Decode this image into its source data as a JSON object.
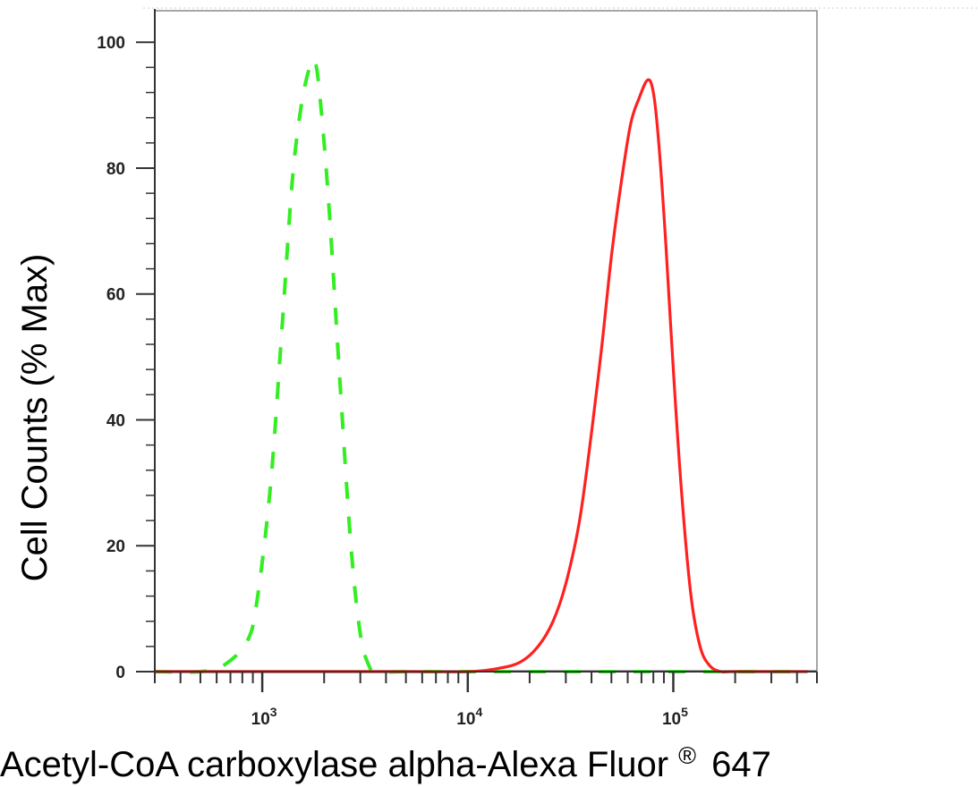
{
  "chart_data": {
    "type": "line",
    "title": "",
    "xlabel": "Acetyl-CoA carboxylase alpha-Alexa Fluor",
    "xlabel_superscript": "®",
    "xlabel_suffix": "647",
    "ylabel": "Cell Counts (% Max)",
    "x_scale": "log",
    "xlim": [
      300,
      500000
    ],
    "ylim": [
      0,
      105
    ],
    "x_ticks": [
      {
        "value": 1000,
        "base": "10",
        "exp": "3"
      },
      {
        "value": 10000,
        "base": "10",
        "exp": "4"
      },
      {
        "value": 100000,
        "base": "10",
        "exp": "5"
      }
    ],
    "y_ticks": [
      {
        "value": 0,
        "label": "0"
      },
      {
        "value": 20,
        "label": "20"
      },
      {
        "value": 40,
        "label": "40"
      },
      {
        "value": 60,
        "label": "60"
      },
      {
        "value": 80,
        "label": "80"
      },
      {
        "value": 100,
        "label": "100"
      }
    ],
    "grid": false,
    "legend": "none",
    "series": [
      {
        "color": "#33ee22",
        "style": "dashed",
        "x": [
          300,
          500,
          650,
          850,
          950,
          1100,
          1250,
          1400,
          1550,
          1700,
          1800,
          1900,
          2100,
          2400,
          2700,
          3000,
          3300,
          3600,
          5000,
          10000,
          50000,
          100000,
          200000,
          450000
        ],
        "y": [
          0,
          0,
          1,
          5,
          12,
          30,
          55,
          78,
          90,
          96,
          97,
          92,
          75,
          45,
          20,
          6,
          1,
          0,
          0,
          0,
          0,
          0,
          0,
          0
        ]
      },
      {
        "color": "#ff2020",
        "style": "solid",
        "x": [
          300,
          1000,
          5000,
          10000,
          14000,
          18000,
          22000,
          26000,
          30000,
          35000,
          40000,
          45000,
          50000,
          56000,
          62000,
          68000,
          75000,
          80000,
          85000,
          92000,
          100000,
          110000,
          122000,
          135000,
          150000,
          170000,
          200000,
          450000
        ],
        "y": [
          0,
          0,
          0,
          0,
          0.5,
          1.5,
          4,
          8,
          14,
          24,
          38,
          52,
          66,
          78,
          87,
          91,
          94,
          92,
          84,
          68,
          48,
          28,
          12,
          4,
          1,
          0,
          0,
          0
        ]
      }
    ]
  }
}
